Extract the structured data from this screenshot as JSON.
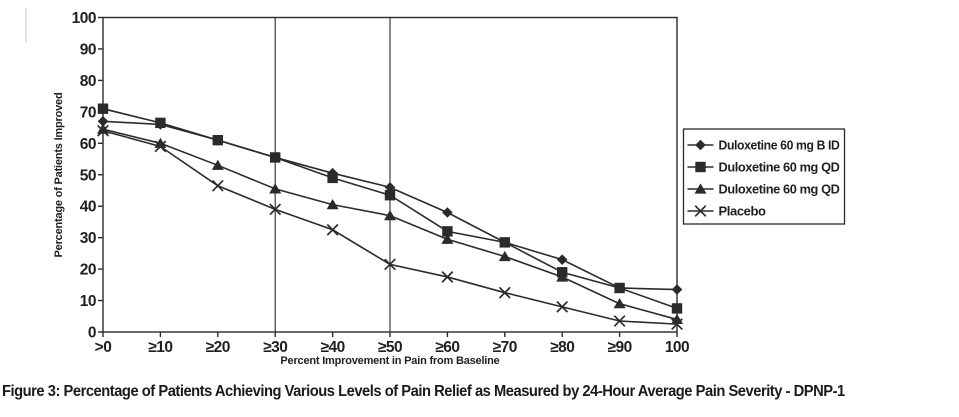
{
  "figure_caption": "Figure 3: Percentage of Patients Achieving Various Levels of Pain Relief as Measured by 24-Hour Average Pain Severity - DPNP-1",
  "colors": {
    "line": "#2b2b2b",
    "text": "#1f1f1f",
    "background": "#ffffff",
    "legend_border": "#2b2b2b",
    "edge_artifact": "#d9d9d9"
  },
  "chart_data": {
    "type": "line",
    "title": "",
    "xlabel": "Percent Improvement in Pain from Baseline",
    "ylabel": "Percentage of Patients Improved",
    "x_tick_labels": [
      ">0",
      "≥10",
      "≥20",
      "≥30",
      "≥40",
      "≥50",
      "≥60",
      "≥70",
      "≥80",
      "≥90",
      "100"
    ],
    "y_ticks": [
      0,
      10,
      20,
      30,
      40,
      50,
      60,
      70,
      80,
      90,
      100
    ],
    "ylim": [
      0,
      100
    ],
    "grid": "vertical-reference-lines-only",
    "vertical_reference_lines_at": [
      "≥30",
      "≥50"
    ],
    "legend_position": "right",
    "series": [
      {
        "name": "Duloxetine 60 mg B ID",
        "marker": "diamond",
        "values": [
          67,
          66,
          61,
          55.5,
          50.5,
          46,
          38,
          28.5,
          23,
          14,
          13.5
        ]
      },
      {
        "name": "Duloxetine 60 mg QD",
        "marker": "square",
        "values": [
          71,
          66.5,
          61,
          55.5,
          49,
          43.5,
          32,
          28.5,
          19,
          14,
          7.5
        ]
      },
      {
        "name": "Duloxetine 60 mg QD",
        "marker": "triangle",
        "values": [
          64.5,
          60,
          53,
          45.5,
          40.5,
          37,
          29.5,
          24,
          17.5,
          9,
          4
        ]
      },
      {
        "name": "Placebo",
        "marker": "x",
        "values": [
          64,
          59,
          46.5,
          39,
          32.5,
          21.5,
          17.5,
          12.5,
          8,
          3.5,
          2.5
        ]
      }
    ]
  }
}
